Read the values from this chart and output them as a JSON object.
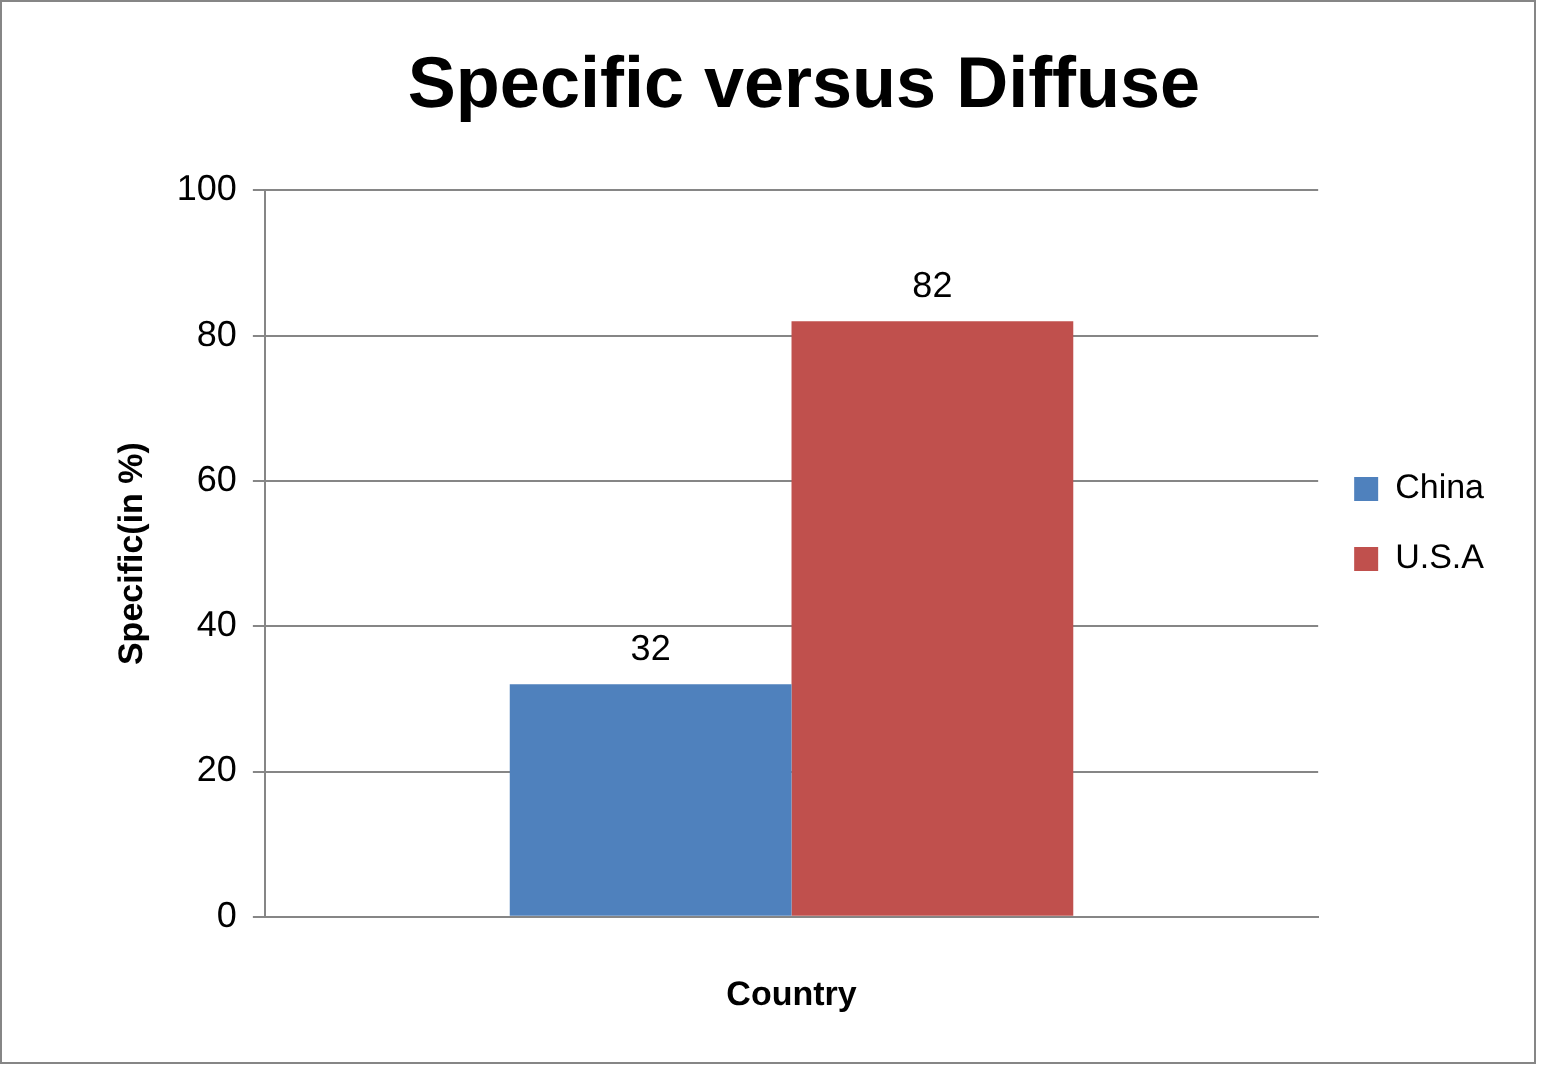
{
  "chart_data": {
    "type": "bar",
    "title": "Specific versus Diffuse",
    "xlabel": "Country",
    "ylabel": "Specific(in %)",
    "categories": [
      null
    ],
    "series": [
      {
        "name": "China",
        "color": "#4f81bd",
        "values": [
          32
        ]
      },
      {
        "name": "U.S.A",
        "color": "#c0504d",
        "values": [
          82
        ]
      }
    ],
    "ylim": [
      0,
      100
    ],
    "yticks": [
      0,
      20,
      40,
      60,
      80,
      100
    ],
    "grid": "y",
    "legend": "right",
    "data_labels": true
  }
}
